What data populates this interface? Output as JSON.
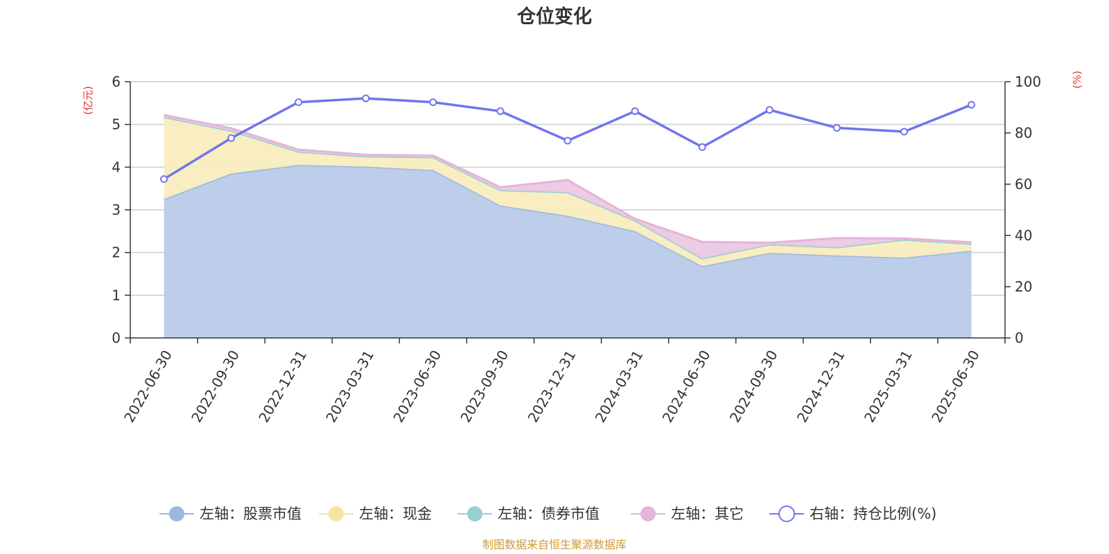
{
  "chart_data": {
    "type": "area",
    "title": "仓位变化",
    "y_left_unit": "(亿元)",
    "y_right_unit": "(%)",
    "y_left_lim": [
      0,
      6
    ],
    "y_left_ticks": [
      "0",
      "1",
      "2",
      "3",
      "4",
      "5",
      "6"
    ],
    "y_right_lim": [
      0,
      100
    ],
    "y_right_ticks": [
      "0",
      "20",
      "40",
      "60",
      "80",
      "100"
    ],
    "grid": true,
    "legend_position": "bottom",
    "categories": [
      "2022-06-30",
      "2022-09-30",
      "2022-12-31",
      "2023-03-31",
      "2023-06-30",
      "2023-09-30",
      "2023-12-31",
      "2024-03-31",
      "2024-06-30",
      "2024-09-30",
      "2024-12-31",
      "2025-03-31",
      "2025-06-30"
    ],
    "stacked_series": [
      {
        "name": "左轴：股票市值",
        "axis": "left",
        "color": "#9bb6e0",
        "fill": "#b8cbe9",
        "values": [
          3.25,
          3.85,
          4.05,
          4.01,
          3.93,
          3.1,
          2.86,
          2.5,
          1.68,
          1.99,
          1.93,
          1.88,
          2.04
        ]
      },
      {
        "name": "左轴：现金",
        "axis": "left",
        "color": "#f5e4a2",
        "fill": "#f9edbe",
        "values": [
          1.92,
          1.0,
          0.31,
          0.24,
          0.3,
          0.36,
          0.55,
          0.25,
          0.18,
          0.2,
          0.19,
          0.42,
          0.16
        ]
      },
      {
        "name": "左轴：债券市值",
        "axis": "left",
        "color": "#95d0d3",
        "fill": "#b6e0e2",
        "values": [
          0,
          0,
          0,
          0,
          0,
          0,
          0,
          0,
          0,
          0,
          0,
          0,
          0
        ]
      },
      {
        "name": "左轴：其它",
        "axis": "left",
        "color": "#e6b3d9",
        "fill": "#ebc8e3",
        "values": [
          0.05,
          0.06,
          0.05,
          0.04,
          0.04,
          0.07,
          0.29,
          0.04,
          0.39,
          0.04,
          0.22,
          0.03,
          0.04
        ]
      }
    ],
    "line_series": {
      "name": "右轴：持仓比例(%)",
      "axis": "right",
      "color": "#7075ec",
      "values": [
        62,
        78,
        92,
        93.5,
        92,
        88.5,
        77,
        88.5,
        74.5,
        89,
        82,
        80.5,
        91
      ]
    }
  },
  "source_note": "制图数据来自恒生聚源数据库",
  "colors": {
    "unit": "#e8312a",
    "axis": "#333333",
    "grid": "#cccccc",
    "source": "#cf9a34"
  }
}
